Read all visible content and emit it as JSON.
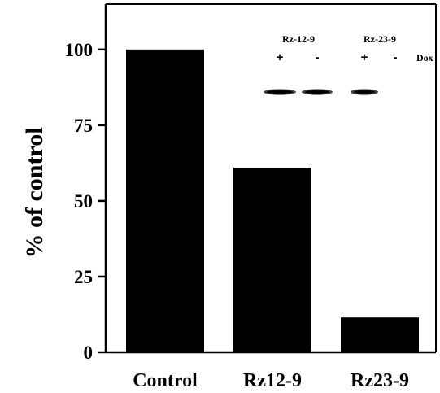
{
  "chart_data": {
    "type": "bar",
    "title": "",
    "xlabel": "",
    "ylabel": "% of control",
    "categories": [
      "Control",
      "Rz12-9",
      "Rz23-9"
    ],
    "values": [
      100,
      61,
      11.5
    ],
    "ylim": [
      0,
      115
    ],
    "yticks": [
      0,
      25,
      50,
      75,
      100
    ],
    "ytick_labels": [
      "0",
      "25",
      "50",
      "75",
      "100"
    ],
    "grid": false,
    "legend": "none",
    "bar_color": "#000000",
    "inset_blot": {
      "group_labels": [
        "Rz-12-9",
        "Rz-23-9"
      ],
      "lane_signs": [
        "+",
        "-",
        "+",
        "-"
      ],
      "treatment_label": "Dox",
      "lanes_with_band": [
        true,
        true,
        true,
        false
      ]
    }
  }
}
